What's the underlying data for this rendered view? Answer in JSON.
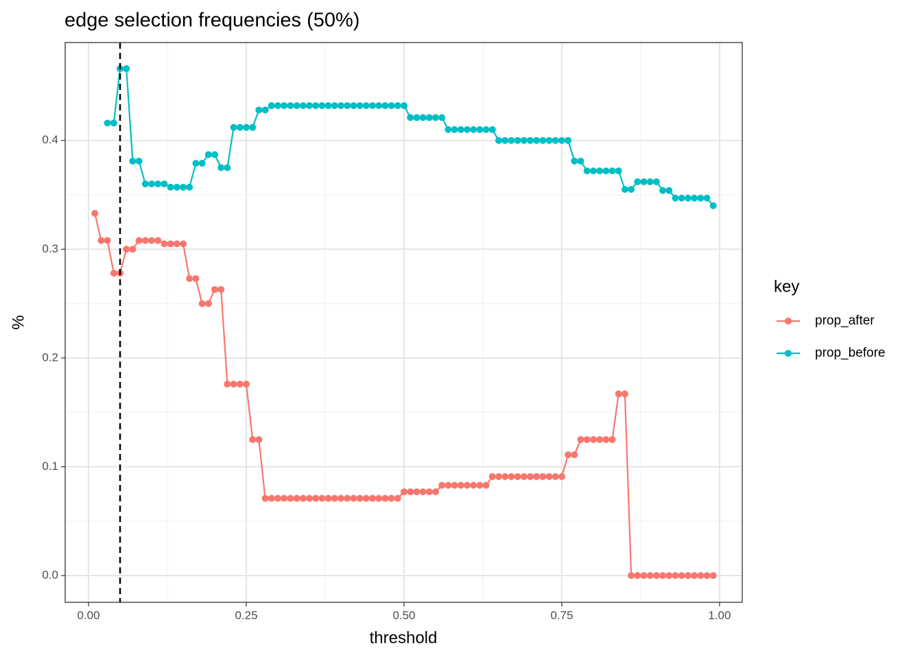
{
  "chart_data": {
    "type": "line",
    "title": "edge selection frequencies (50%)",
    "x_label": "threshold",
    "y_label": "%",
    "legend_title": "key",
    "legend_position": "right",
    "grid": true,
    "vline": 0.05,
    "xlim": [
      -0.037,
      1.036
    ],
    "ylim": [
      -0.0246,
      0.49
    ],
    "xticks": [
      {
        "value": 0,
        "label": "0.00"
      },
      {
        "value": 0.25,
        "label": "0.25"
      },
      {
        "value": 0.5,
        "label": "0.50"
      },
      {
        "value": 0.75,
        "label": "0.75"
      },
      {
        "value": 1,
        "label": "1.00"
      }
    ],
    "yticks": [
      {
        "value": 0,
        "label": "0.0"
      },
      {
        "value": 0.1,
        "label": "0.1"
      },
      {
        "value": 0.2,
        "label": "0.2"
      },
      {
        "value": 0.3,
        "label": "0.3"
      },
      {
        "value": 0.4,
        "label": "0.4"
      }
    ],
    "x": [
      0.01,
      0.02,
      0.03,
      0.04,
      0.05,
      0.06,
      0.07,
      0.08,
      0.09,
      0.1,
      0.11,
      0.12,
      0.13,
      0.14,
      0.15,
      0.16,
      0.17,
      0.18,
      0.19,
      0.2,
      0.21,
      0.22,
      0.23,
      0.24,
      0.25,
      0.26,
      0.27,
      0.28,
      0.29,
      0.3,
      0.31,
      0.32,
      0.33,
      0.34,
      0.35,
      0.36,
      0.37,
      0.38,
      0.39,
      0.4,
      0.41,
      0.42,
      0.43,
      0.44,
      0.45,
      0.46,
      0.47,
      0.48,
      0.49,
      0.5,
      0.51,
      0.52,
      0.53,
      0.54,
      0.55,
      0.56,
      0.57,
      0.58,
      0.59,
      0.6,
      0.61,
      0.62,
      0.63,
      0.64,
      0.65,
      0.66,
      0.67,
      0.68,
      0.69,
      0.7,
      0.71,
      0.72,
      0.73,
      0.74,
      0.75,
      0.76,
      0.77,
      0.78,
      0.79,
      0.8,
      0.81,
      0.82,
      0.83,
      0.84,
      0.85,
      0.86,
      0.87,
      0.88,
      0.89,
      0.9,
      0.91,
      0.92,
      0.93,
      0.94,
      0.95,
      0.96,
      0.97,
      0.98,
      0.99
    ],
    "series": [
      {
        "name": "prop_after",
        "color": "#F8766D",
        "values": [
          0.333,
          0.308,
          0.308,
          0.278,
          0.278,
          0.3,
          0.3,
          0.308,
          0.308,
          0.308,
          0.308,
          0.305,
          0.305,
          0.305,
          0.305,
          0.273,
          0.273,
          0.25,
          0.25,
          0.263,
          0.263,
          0.176,
          0.176,
          0.176,
          0.176,
          0.125,
          0.125,
          0.071,
          0.071,
          0.071,
          0.071,
          0.071,
          0.071,
          0.071,
          0.071,
          0.071,
          0.071,
          0.071,
          0.071,
          0.071,
          0.071,
          0.071,
          0.071,
          0.071,
          0.071,
          0.071,
          0.071,
          0.071,
          0.071,
          0.077,
          0.077,
          0.077,
          0.077,
          0.077,
          0.077,
          0.083,
          0.083,
          0.083,
          0.083,
          0.083,
          0.083,
          0.083,
          0.083,
          0.091,
          0.091,
          0.091,
          0.091,
          0.091,
          0.091,
          0.091,
          0.091,
          0.091,
          0.091,
          0.091,
          0.091,
          0.111,
          0.111,
          0.125,
          0.125,
          0.125,
          0.125,
          0.125,
          0.125,
          0.167,
          0.167,
          0,
          0,
          0,
          0,
          0,
          0,
          0,
          0,
          0,
          0,
          0,
          0,
          0,
          0
        ]
      },
      {
        "name": "prop_before",
        "color": "#00BFC4",
        "values": [
          null,
          null,
          0.416,
          0.416,
          0.466,
          0.466,
          0.381,
          0.381,
          0.36,
          0.36,
          0.36,
          0.36,
          0.357,
          0.357,
          0.357,
          0.357,
          0.379,
          0.379,
          0.387,
          0.387,
          0.375,
          0.375,
          0.412,
          0.412,
          0.412,
          0.412,
          0.428,
          0.428,
          0.432,
          0.432,
          0.432,
          0.432,
          0.432,
          0.432,
          0.432,
          0.432,
          0.432,
          0.432,
          0.432,
          0.432,
          0.432,
          0.432,
          0.432,
          0.432,
          0.432,
          0.432,
          0.432,
          0.432,
          0.432,
          0.432,
          0.421,
          0.421,
          0.421,
          0.421,
          0.421,
          0.421,
          0.41,
          0.41,
          0.41,
          0.41,
          0.41,
          0.41,
          0.41,
          0.41,
          0.4,
          0.4,
          0.4,
          0.4,
          0.4,
          0.4,
          0.4,
          0.4,
          0.4,
          0.4,
          0.4,
          0.4,
          0.381,
          0.381,
          0.372,
          0.372,
          0.372,
          0.372,
          0.372,
          0.372,
          0.355,
          0.355,
          0.362,
          0.362,
          0.362,
          0.362,
          0.354,
          0.354,
          0.347,
          0.347,
          0.347,
          0.347,
          0.347,
          0.347,
          0.34
        ]
      }
    ]
  }
}
